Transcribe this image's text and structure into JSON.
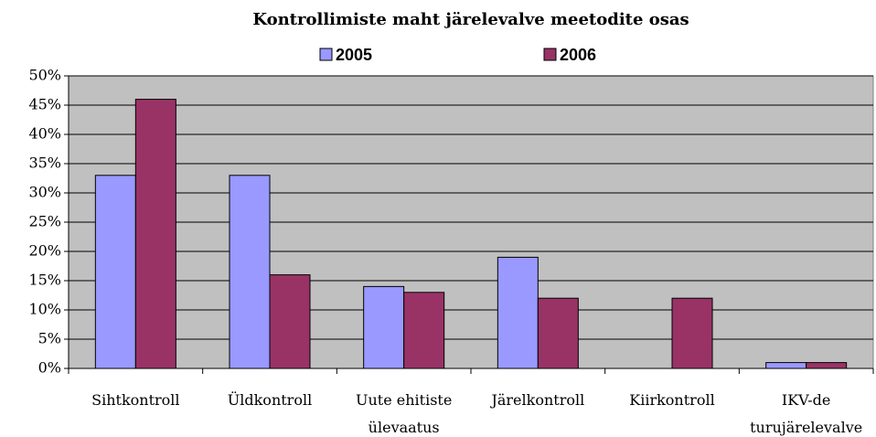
{
  "chart_data": {
    "type": "bar",
    "title": "Kontrollimiste maht järelevalve meetodite osas",
    "categories": [
      "Sihtkontroll",
      "Üldkontroll",
      "Uute ehitiste ülevaatus",
      "Järelkontroll",
      "Kiirkontroll",
      "IKV-de turujärelevalve"
    ],
    "series": [
      {
        "name": "2005",
        "color": "#9999ff",
        "values": [
          33,
          33,
          14,
          19,
          0,
          1
        ]
      },
      {
        "name": "2006",
        "color": "#993366",
        "values": [
          46,
          16,
          13,
          12,
          12,
          1
        ]
      }
    ],
    "ylim": [
      0,
      50
    ],
    "yticks": [
      {
        "value": 0,
        "label": "0%"
      },
      {
        "value": 5,
        "label": "5%"
      },
      {
        "value": 10,
        "label": "10%"
      },
      {
        "value": 15,
        "label": "15%"
      },
      {
        "value": 20,
        "label": "20%"
      },
      {
        "value": 25,
        "label": "25%"
      },
      {
        "value": 30,
        "label": "30%"
      },
      {
        "value": 35,
        "label": "35%"
      },
      {
        "value": 40,
        "label": "40%"
      },
      {
        "value": 45,
        "label": "45%"
      },
      {
        "value": 50,
        "label": "50%"
      }
    ],
    "grid": true,
    "legend": "top",
    "plot_background": "#c0c0c0"
  }
}
